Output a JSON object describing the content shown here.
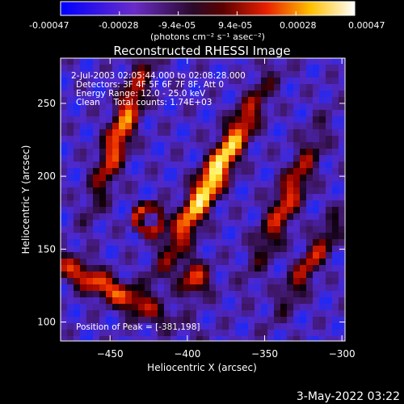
{
  "colorbar": {
    "tick_labels": [
      "-0.00047",
      "-0.00028",
      "-9.4e-05",
      "9.4e-05",
      "0.00028",
      "0.00047"
    ],
    "unit_label": "(photons cm⁻² s⁻¹ asec⁻²)",
    "range": [
      -0.00047,
      0.00047
    ]
  },
  "chart_data": {
    "type": "heatmap",
    "title": "Reconstructed RHESSI Image",
    "xlabel": "Heliocentric X (arcsec)",
    "ylabel": "Heliocentric Y (arcsec)",
    "xlim": [
      -482,
      -298
    ],
    "ylim": [
      87,
      281
    ],
    "x_ticks": [
      -450,
      -400,
      -350,
      -300
    ],
    "y_ticks": [
      100,
      150,
      200,
      250
    ],
    "colormap": "blue-purple-red-yellow-white",
    "peak": [
      -381,
      198
    ],
    "annotations": [
      " 2-Jul-2003 02:05:44.000 to 02:08:28.000",
      "Detectors: 3F 4F 5F 6F 7F 8F, Att 0",
      "Energy Range: 12.0 - 25.0 keV",
      "Clean     Total counts: 1.74E+03"
    ],
    "peak_label": "Position of Peak = [-381,198]"
  },
  "timestamp": "3-May-2022 03:22"
}
